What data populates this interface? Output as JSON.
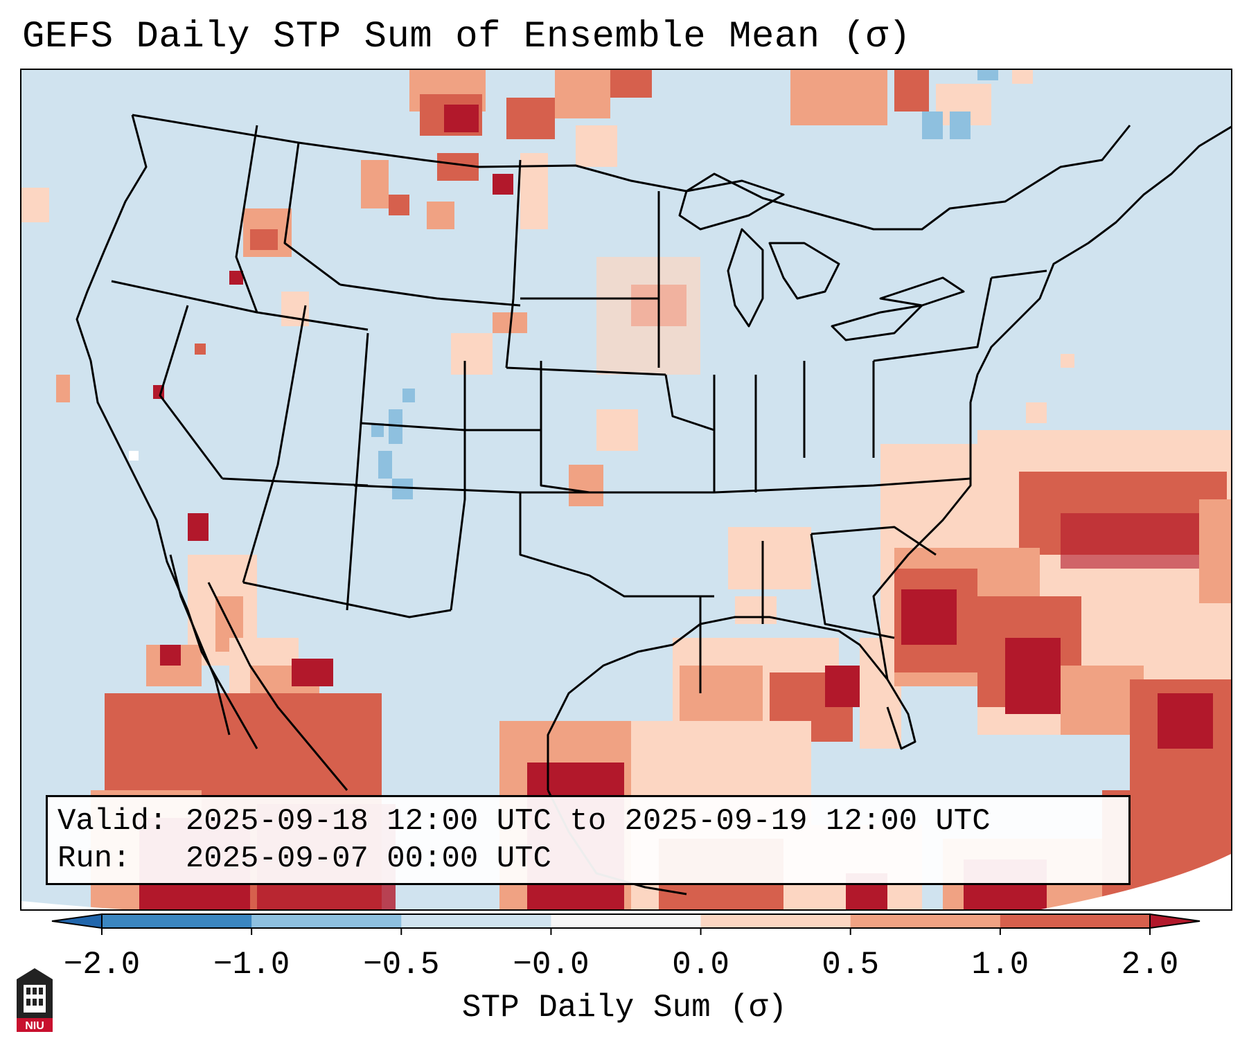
{
  "title": "GEFS Daily STP Sum of Ensemble Mean (σ)",
  "info": {
    "valid_line": "Valid: 2025-09-18 12:00 UTC to 2025-09-19 12:00 UTC",
    "run_line": "Run:   2025-09-07 00:00 UTC"
  },
  "colorbar": {
    "label": "STP Daily Sum (σ)",
    "tick_labels": [
      "−2.0",
      "−1.0",
      "−0.5",
      "−0.0",
      "0.0",
      "0.5",
      "1.0",
      "2.0"
    ],
    "bins": [
      {
        "from": -2.0,
        "to": -1.0,
        "color": "#3b86c0"
      },
      {
        "from": -1.0,
        "to": -0.5,
        "color": "#8ec0df"
      },
      {
        "from": -0.5,
        "to": -0.0,
        "color": "#d0e3ef"
      },
      {
        "from": -0.0,
        "to": 0.0,
        "color": "#f7f7f7"
      },
      {
        "from": 0.0,
        "to": 0.5,
        "color": "#fcd6c2"
      },
      {
        "from": 0.5,
        "to": 1.0,
        "color": "#f0a283"
      },
      {
        "from": 1.0,
        "to": 2.0,
        "color": "#d6604d"
      }
    ],
    "extend_low_color": "#2166ac",
    "extend_high_color": "#b2182b"
  },
  "logo": {
    "text": "NIU",
    "icon": "university-building-icon"
  },
  "colors": {
    "background": "#d0e3ef",
    "border": "#000000"
  }
}
